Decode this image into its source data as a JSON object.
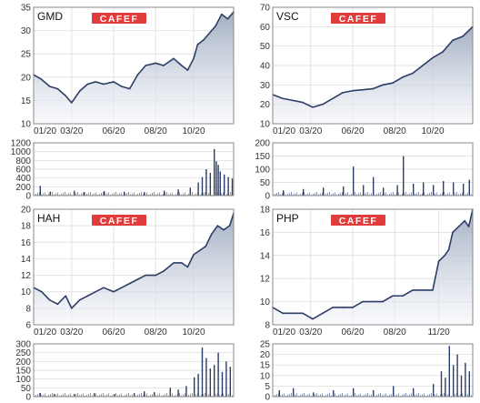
{
  "brand": {
    "logo_text": "CAFEF",
    "accent": "#e23b3b"
  },
  "colors": {
    "line": "#2c3e66",
    "fill_top": "#9aa7bd",
    "fill_bottom": "#f4f6fa",
    "volume": "#2c3e66",
    "grid": "#e2e2e2",
    "frame": "#888888"
  },
  "chart_data": [
    {
      "type": "area",
      "ticker": "GMD",
      "x_ticks": [
        "01/20",
        "03/20",
        "06/20",
        "08/20",
        "10/20"
      ],
      "x_tick_pos": [
        0.0,
        0.19,
        0.4,
        0.61,
        0.8
      ],
      "yticks": [
        10,
        15,
        20,
        25,
        30,
        35
      ],
      "ylim": [
        10,
        35
      ],
      "grid": true,
      "price_x": [
        0,
        0.04,
        0.08,
        0.12,
        0.16,
        0.19,
        0.23,
        0.27,
        0.31,
        0.35,
        0.4,
        0.44,
        0.48,
        0.52,
        0.56,
        0.61,
        0.65,
        0.7,
        0.74,
        0.77,
        0.8,
        0.82,
        0.85,
        0.88,
        0.91,
        0.94,
        0.97,
        1.0
      ],
      "price": [
        20.5,
        19.5,
        18.0,
        17.5,
        16.0,
        14.5,
        17.0,
        18.5,
        19.0,
        18.5,
        19.0,
        18.0,
        17.5,
        20.5,
        22.5,
        23.0,
        22.5,
        24.0,
        22.5,
        21.5,
        24.0,
        27.0,
        28.0,
        29.5,
        31.0,
        33.5,
        32.5,
        34.0
      ],
      "volume_yticks": [
        0,
        200,
        400,
        600,
        800,
        1000,
        1200
      ],
      "volume_ylim": [
        0,
        1200
      ],
      "volume_x": [
        0.03,
        0.08,
        0.2,
        0.25,
        0.35,
        0.45,
        0.55,
        0.65,
        0.72,
        0.78,
        0.82,
        0.84,
        0.86,
        0.88,
        0.9,
        0.91,
        0.92,
        0.93,
        0.95,
        0.97,
        0.99
      ],
      "volume": [
        220,
        90,
        110,
        80,
        100,
        90,
        80,
        110,
        140,
        180,
        300,
        420,
        600,
        520,
        1060,
        780,
        700,
        550,
        480,
        420,
        390
      ]
    },
    {
      "type": "area",
      "ticker": "VSC",
      "x_ticks": [
        "01/20",
        "03/20",
        "06/20",
        "08/20",
        "10/20"
      ],
      "x_tick_pos": [
        0.0,
        0.19,
        0.4,
        0.61,
        0.8
      ],
      "yticks": [
        10,
        20,
        30,
        40,
        50,
        60,
        70
      ],
      "ylim": [
        10,
        70
      ],
      "grid": true,
      "price_x": [
        0,
        0.05,
        0.1,
        0.15,
        0.2,
        0.25,
        0.3,
        0.35,
        0.4,
        0.45,
        0.5,
        0.55,
        0.6,
        0.65,
        0.7,
        0.75,
        0.8,
        0.85,
        0.9,
        0.95,
        1.0
      ],
      "price": [
        25.0,
        23.0,
        22.0,
        21.0,
        18.5,
        20.0,
        23.0,
        26.0,
        27.0,
        27.5,
        28.0,
        30.0,
        31.0,
        34.0,
        36.0,
        40.0,
        44.0,
        47.0,
        53.0,
        55.0,
        60.0
      ],
      "volume_yticks": [
        0,
        50,
        100,
        150,
        200
      ],
      "volume_ylim": [
        0,
        200
      ],
      "volume_x": [
        0.05,
        0.15,
        0.25,
        0.35,
        0.4,
        0.45,
        0.5,
        0.55,
        0.62,
        0.65,
        0.7,
        0.75,
        0.8,
        0.85,
        0.9,
        0.95,
        0.98
      ],
      "volume": [
        20,
        25,
        30,
        35,
        110,
        40,
        70,
        30,
        40,
        150,
        45,
        50,
        40,
        55,
        50,
        45,
        60
      ]
    },
    {
      "type": "area",
      "ticker": "HAH",
      "x_ticks": [
        "01/20",
        "03/20",
        "06/20",
        "08/20",
        "10/20"
      ],
      "x_tick_pos": [
        0.0,
        0.19,
        0.4,
        0.61,
        0.8
      ],
      "yticks": [
        6,
        8,
        10,
        12,
        14,
        16,
        18,
        20
      ],
      "ylim": [
        6,
        20
      ],
      "grid": true,
      "price_x": [
        0,
        0.04,
        0.08,
        0.12,
        0.16,
        0.19,
        0.23,
        0.27,
        0.31,
        0.35,
        0.4,
        0.44,
        0.48,
        0.52,
        0.56,
        0.61,
        0.65,
        0.7,
        0.74,
        0.77,
        0.8,
        0.83,
        0.86,
        0.89,
        0.92,
        0.95,
        0.98,
        1.0
      ],
      "price": [
        10.5,
        10.0,
        9.0,
        8.5,
        9.5,
        8.0,
        9.0,
        9.5,
        10.0,
        10.5,
        10.0,
        10.5,
        11.0,
        11.5,
        12.0,
        12.0,
        12.5,
        13.5,
        13.5,
        13.0,
        14.5,
        15.0,
        15.5,
        17.0,
        18.0,
        17.5,
        18.0,
        19.5
      ],
      "volume_yticks": [
        0,
        50,
        100,
        150,
        200,
        250,
        300
      ],
      "volume_ylim": [
        0,
        300
      ],
      "volume_x": [
        0.03,
        0.1,
        0.2,
        0.3,
        0.4,
        0.5,
        0.55,
        0.6,
        0.68,
        0.72,
        0.76,
        0.8,
        0.82,
        0.84,
        0.86,
        0.88,
        0.9,
        0.92,
        0.94,
        0.96,
        0.98
      ],
      "volume": [
        20,
        15,
        15,
        20,
        15,
        20,
        30,
        25,
        50,
        40,
        60,
        110,
        130,
        280,
        220,
        160,
        180,
        250,
        140,
        200,
        170
      ]
    },
    {
      "type": "area",
      "ticker": "PHP",
      "x_ticks": [
        "01/20",
        "03/20",
        "06/20",
        "08/20",
        "11/20"
      ],
      "x_tick_pos": [
        0.0,
        0.19,
        0.4,
        0.61,
        0.83
      ],
      "yticks": [
        8,
        10,
        12,
        14,
        16,
        18
      ],
      "ylim": [
        8,
        18
      ],
      "grid": true,
      "price_x": [
        0,
        0.05,
        0.1,
        0.15,
        0.2,
        0.25,
        0.3,
        0.35,
        0.4,
        0.45,
        0.5,
        0.55,
        0.6,
        0.65,
        0.7,
        0.75,
        0.8,
        0.83,
        0.86,
        0.88,
        0.9,
        0.93,
        0.96,
        0.98,
        1.0
      ],
      "price": [
        9.5,
        9.0,
        9.0,
        9.0,
        8.5,
        9.0,
        9.5,
        9.5,
        9.5,
        10.0,
        10.0,
        10.0,
        10.5,
        10.5,
        11.0,
        11.0,
        11.0,
        13.5,
        14.0,
        14.5,
        16.0,
        16.5,
        17.0,
        16.5,
        18.0
      ],
      "volume_yticks": [
        0,
        5,
        10,
        15,
        20,
        25
      ],
      "volume_ylim": [
        0,
        25
      ],
      "volume_x": [
        0.03,
        0.1,
        0.2,
        0.3,
        0.4,
        0.5,
        0.6,
        0.7,
        0.8,
        0.84,
        0.86,
        0.88,
        0.9,
        0.92,
        0.94,
        0.96,
        0.98
      ],
      "volume": [
        3,
        4,
        2,
        3,
        4,
        3,
        5,
        4,
        6,
        12,
        9,
        24,
        15,
        20,
        10,
        16,
        12
      ]
    }
  ]
}
